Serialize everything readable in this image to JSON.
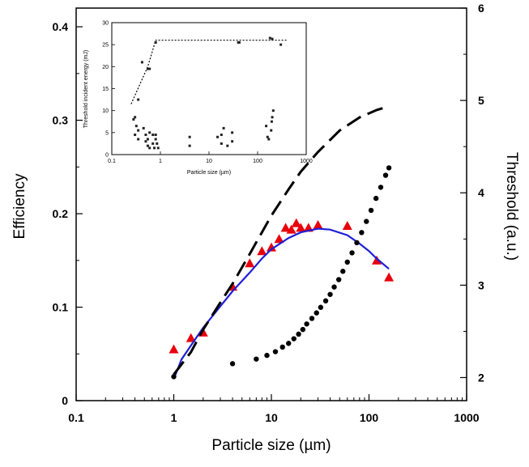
{
  "chart_data": {
    "type": "scatter",
    "x_scale": "log",
    "xlabel": "Particle size (µm)",
    "ylabel": "Efficiency",
    "y2label": "Threshold (a.u.)",
    "xlim": [
      0.1,
      1000
    ],
    "ylim": [
      0,
      0.42
    ],
    "y2lim": [
      1.75,
      6
    ],
    "x_ticks": [
      "0.1",
      "1",
      "10",
      "100",
      "1000"
    ],
    "y_ticks": [
      "0",
      "0.1",
      "0.2",
      "0.3",
      "0.4"
    ],
    "y2_ticks": [
      "2",
      "3",
      "4",
      "5",
      "6"
    ],
    "series": [
      {
        "marker": "triangle",
        "color": "#e8000b",
        "axis": "left",
        "points": [
          [
            1,
            0.055
          ],
          [
            1.5,
            0.067
          ],
          [
            2,
            0.073
          ],
          [
            4,
            0.122
          ],
          [
            6,
            0.147
          ],
          [
            8,
            0.16
          ],
          [
            10,
            0.164
          ],
          [
            12,
            0.173
          ],
          [
            14,
            0.185
          ],
          [
            16,
            0.183
          ],
          [
            18,
            0.19
          ],
          [
            20,
            0.185
          ],
          [
            24,
            0.185
          ],
          [
            30,
            0.188
          ],
          [
            60,
            0.187
          ],
          [
            120,
            0.15
          ],
          [
            160,
            0.132
          ]
        ]
      },
      {
        "style": "line",
        "color": "#1f1fd6",
        "axis": "left",
        "points": [
          [
            1,
            0.023
          ],
          [
            1.2,
            0.044
          ],
          [
            1.5,
            0.059
          ],
          [
            2,
            0.078
          ],
          [
            3,
            0.101
          ],
          [
            4,
            0.117
          ],
          [
            6,
            0.137
          ],
          [
            8,
            0.152
          ],
          [
            10,
            0.162
          ],
          [
            15,
            0.174
          ],
          [
            20,
            0.18
          ],
          [
            30,
            0.184
          ],
          [
            40,
            0.183
          ],
          [
            60,
            0.177
          ],
          [
            80,
            0.168
          ],
          [
            100,
            0.16
          ],
          [
            120,
            0.152
          ],
          [
            160,
            0.141
          ]
        ]
      },
      {
        "style": "dashed",
        "color": "#000000",
        "axis": "left",
        "points": [
          [
            1,
            0.028
          ],
          [
            1.5,
            0.052
          ],
          [
            2,
            0.076
          ],
          [
            3,
            0.105
          ],
          [
            4,
            0.125
          ],
          [
            6,
            0.157
          ],
          [
            10,
            0.198
          ],
          [
            15,
            0.226
          ],
          [
            20,
            0.245
          ],
          [
            30,
            0.266
          ],
          [
            50,
            0.289
          ],
          [
            80,
            0.303
          ],
          [
            120,
            0.311
          ],
          [
            160,
            0.315
          ]
        ]
      },
      {
        "marker": "dot",
        "color": "#000000",
        "axis": "right",
        "points": [
          [
            1,
            2.01
          ],
          [
            4,
            2.15
          ],
          [
            7,
            2.2
          ],
          [
            9,
            2.24
          ],
          [
            11,
            2.28
          ],
          [
            13,
            2.33
          ],
          [
            15,
            2.37
          ],
          [
            17,
            2.42
          ],
          [
            19,
            2.47
          ],
          [
            21,
            2.52
          ],
          [
            23,
            2.58
          ],
          [
            26,
            2.64
          ],
          [
            29,
            2.7
          ],
          [
            32,
            2.76
          ],
          [
            36,
            2.83
          ],
          [
            40,
            2.9
          ],
          [
            44,
            2.98
          ],
          [
            49,
            3.06
          ],
          [
            54,
            3.15
          ],
          [
            60,
            3.25
          ],
          [
            67,
            3.35
          ],
          [
            75,
            3.46
          ],
          [
            84,
            3.57
          ],
          [
            94,
            3.69
          ],
          [
            105,
            3.81
          ],
          [
            118,
            3.94
          ],
          [
            132,
            4.06
          ],
          [
            148,
            4.19
          ],
          [
            160,
            4.27
          ]
        ]
      }
    ],
    "inset": {
      "type": "scatter",
      "x_scale": "log",
      "xlabel": "Particle size (µm)",
      "ylabel": "Threshold incident energy (mJ)",
      "xlim": [
        0.1,
        1000
      ],
      "ylim": [
        0,
        30
      ],
      "x_ticks": [
        "0.1",
        "1",
        "10",
        "100",
        "1000"
      ],
      "y_ticks": [
        "0",
        "5",
        "10",
        "15",
        "20",
        "25",
        "30"
      ],
      "dotted_line": [
        [
          0.25,
          11.5
        ],
        [
          0.55,
          20
        ],
        [
          0.8,
          26
        ],
        [
          400,
          26
        ]
      ],
      "points": [
        [
          0.35,
          12.5
        ],
        [
          0.42,
          21
        ],
        [
          0.55,
          19.5
        ],
        [
          0.6,
          19.5
        ],
        [
          0.8,
          25.5
        ],
        [
          40,
          25.5
        ],
        [
          42,
          25.5
        ],
        [
          180,
          26.5
        ],
        [
          200,
          26.3
        ],
        [
          300,
          25
        ],
        [
          0.28,
          8
        ],
        [
          0.3,
          8.5
        ],
        [
          0.32,
          6.5
        ],
        [
          0.35,
          5.5
        ],
        [
          0.3,
          4.5
        ],
        [
          0.35,
          3.5
        ],
        [
          0.45,
          6
        ],
        [
          0.5,
          4.5
        ],
        [
          0.5,
          3
        ],
        [
          0.55,
          2
        ],
        [
          0.6,
          1.5
        ],
        [
          0.55,
          3.5
        ],
        [
          0.6,
          5
        ],
        [
          0.7,
          4.5
        ],
        [
          0.7,
          2.5
        ],
        [
          0.75,
          1.5
        ],
        [
          0.8,
          3.5
        ],
        [
          0.8,
          4.5
        ],
        [
          0.85,
          2.5
        ],
        [
          0.9,
          1.5
        ],
        [
          4,
          4
        ],
        [
          4,
          2
        ],
        [
          15,
          4
        ],
        [
          18,
          4.5
        ],
        [
          20,
          6
        ],
        [
          18,
          2.5
        ],
        [
          24,
          2
        ],
        [
          30,
          5
        ],
        [
          30,
          3
        ],
        [
          150,
          6.5
        ],
        [
          160,
          4
        ],
        [
          170,
          3.5
        ],
        [
          190,
          5.5
        ],
        [
          195,
          7.5
        ],
        [
          200,
          8.5
        ],
        [
          210,
          10
        ]
      ]
    }
  }
}
